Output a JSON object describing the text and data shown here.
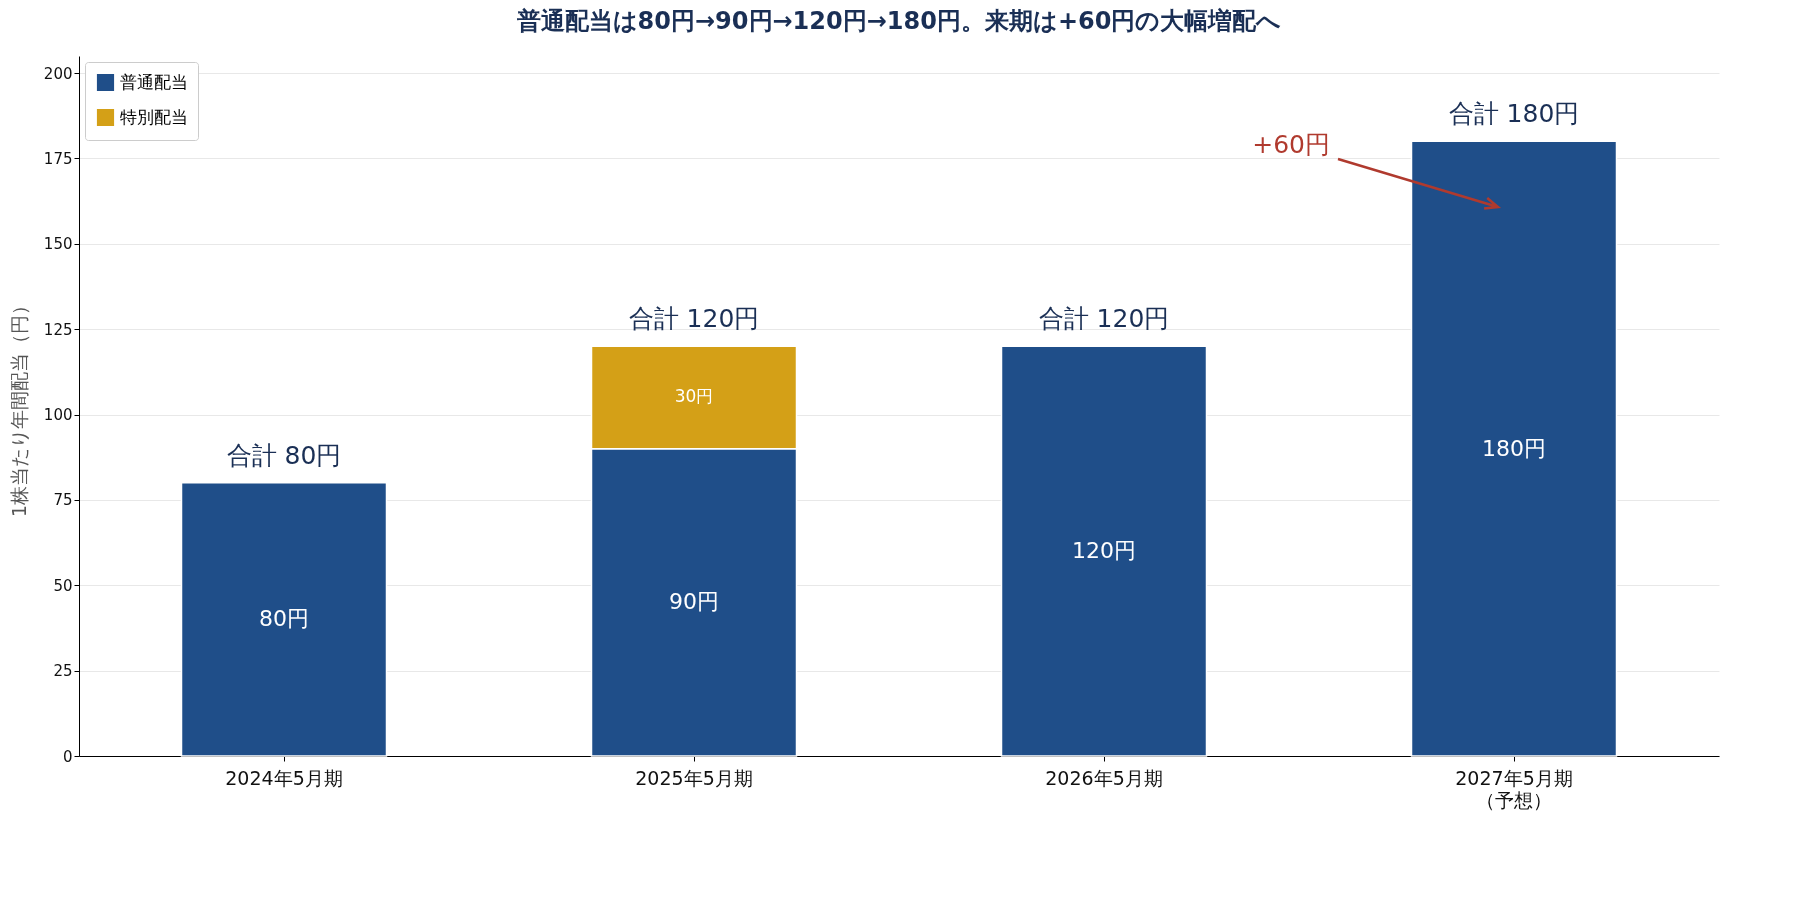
{
  "chart_data": {
    "type": "bar",
    "title": "普通配当は80円→90円→120円→180円。来期は+60円の大幅増配へ",
    "ylabel": "1株当たり年間配当（円）",
    "categories": [
      "2024年5月期",
      "2025年5月期",
      "2026年5月期",
      "2027年5月期（予想）"
    ],
    "stacked": true,
    "series": [
      {
        "name": "普通配当",
        "color": "#1f4e89",
        "values": [
          80,
          90,
          120,
          180
        ],
        "value_labels": [
          "80円",
          "90円",
          "120円",
          "180円"
        ]
      },
      {
        "name": "特別配当",
        "color": "#d4a017",
        "values": [
          null,
          30,
          null,
          null
        ],
        "value_labels": [
          null,
          "30円",
          null,
          null
        ]
      }
    ],
    "totals": [
      "合計 80円",
      "合計 120円",
      "合計 120円",
      "合計 180円"
    ],
    "ylim": [
      0,
      205
    ],
    "yticks": [
      0,
      25,
      50,
      75,
      100,
      125,
      150,
      175,
      200
    ],
    "grid": "y",
    "legend": "top left",
    "annotations": [
      "+60円"
    ]
  }
}
